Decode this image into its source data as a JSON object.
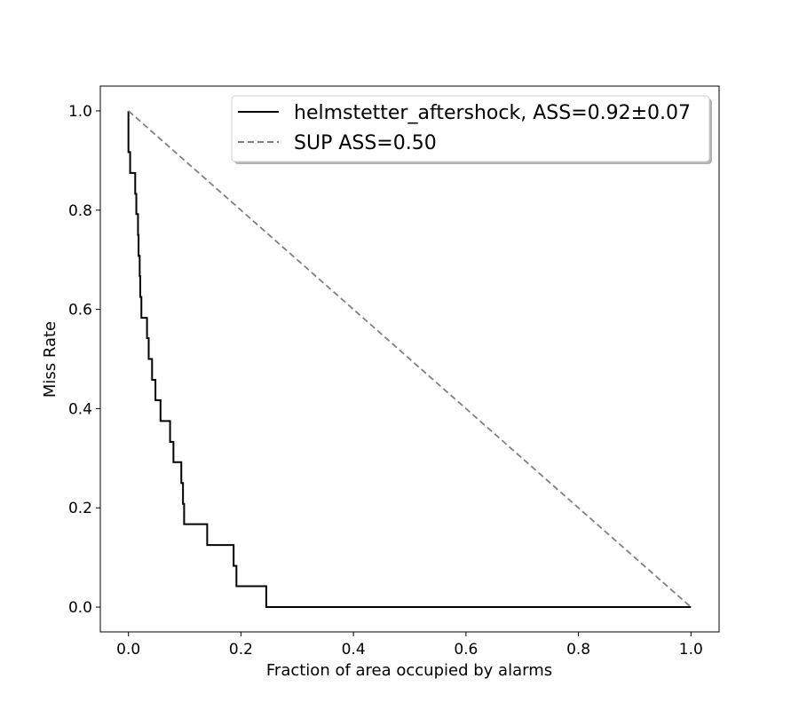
{
  "chart_data": {
    "type": "line",
    "title": "",
    "xlabel": "Fraction of area occupied by alarms",
    "ylabel": "Miss Rate",
    "xlim": [
      -0.05,
      1.05
    ],
    "ylim": [
      -0.05,
      1.05
    ],
    "xticks": [
      0.0,
      0.2,
      0.4,
      0.6,
      0.8,
      1.0
    ],
    "yticks": [
      0.0,
      0.2,
      0.4,
      0.6,
      0.8,
      1.0
    ],
    "xtick_labels": [
      "0.0",
      "0.2",
      "0.4",
      "0.6",
      "0.8",
      "1.0"
    ],
    "ytick_labels": [
      "0.0",
      "0.2",
      "0.4",
      "0.6",
      "0.8",
      "1.0"
    ],
    "grid": false,
    "legend_position": "top-right",
    "series": [
      {
        "name": "helmstetter_aftershock, ASS=0.92±0.07",
        "style": "solid",
        "color": "#000000",
        "x": [
          0.0,
          0.0,
          0.003,
          0.003,
          0.012,
          0.012,
          0.014,
          0.014,
          0.017,
          0.017,
          0.018,
          0.018,
          0.02,
          0.02,
          0.021,
          0.021,
          0.023,
          0.023,
          0.033,
          0.033,
          0.036,
          0.036,
          0.042,
          0.042,
          0.048,
          0.048,
          0.057,
          0.057,
          0.074,
          0.074,
          0.08,
          0.08,
          0.094,
          0.094,
          0.097,
          0.097,
          0.099,
          0.099,
          0.14,
          0.14,
          0.187,
          0.187,
          0.192,
          0.192,
          0.245,
          0.245,
          0.342,
          0.342,
          1.0
        ],
        "y": [
          1.0,
          0.917,
          0.917,
          0.875,
          0.875,
          0.833,
          0.833,
          0.792,
          0.792,
          0.75,
          0.75,
          0.708,
          0.708,
          0.667,
          0.667,
          0.625,
          0.625,
          0.583,
          0.583,
          0.542,
          0.542,
          0.5,
          0.5,
          0.458,
          0.458,
          0.417,
          0.417,
          0.375,
          0.375,
          0.333,
          0.333,
          0.292,
          0.292,
          0.25,
          0.25,
          0.208,
          0.208,
          0.167,
          0.167,
          0.125,
          0.125,
          0.083,
          0.083,
          0.042,
          0.042,
          0.0,
          0.0,
          0.0,
          0.0
        ]
      },
      {
        "name": "SUP ASS=0.50",
        "style": "dashed",
        "color": "#808080",
        "x": [
          0.0,
          1.0
        ],
        "y": [
          1.0,
          0.0
        ]
      }
    ]
  }
}
